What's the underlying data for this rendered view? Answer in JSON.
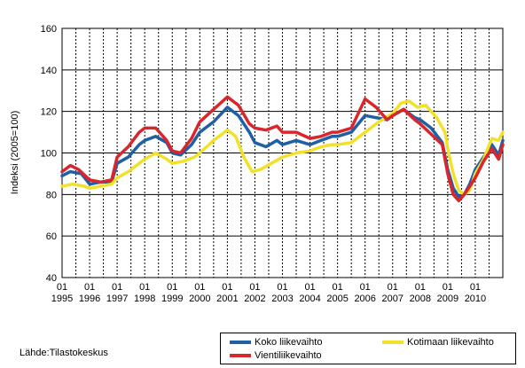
{
  "chart_data": {
    "type": "line",
    "title": "",
    "xlabel": "",
    "ylabel": "Indeksi (2005=100)",
    "ylim": [
      40,
      160
    ],
    "yticks": [
      40,
      60,
      80,
      100,
      120,
      140,
      160
    ],
    "x_tick_month": "01",
    "x_years": [
      "1995",
      "1996",
      "1997",
      "1998",
      "1999",
      "2000",
      "2001",
      "2002",
      "2003",
      "2004",
      "2005",
      "2006",
      "2007",
      "2008",
      "2009",
      "2010"
    ],
    "grid": true,
    "legend_position": "bottom-right",
    "source": "Lähde:Tilastokeskus",
    "series": [
      {
        "name": "Koko liikevaihto",
        "color": "#1f5fa6",
        "points": [
          [
            1995.0,
            89
          ],
          [
            1995.3,
            91
          ],
          [
            1995.7,
            90
          ],
          [
            1996.0,
            85
          ],
          [
            1996.4,
            86
          ],
          [
            1996.8,
            86
          ],
          [
            1997.0,
            95
          ],
          [
            1997.4,
            98
          ],
          [
            1997.8,
            104
          ],
          [
            1998.0,
            106
          ],
          [
            1998.4,
            108
          ],
          [
            1998.8,
            105
          ],
          [
            1999.0,
            100
          ],
          [
            1999.3,
            99
          ],
          [
            1999.7,
            104
          ],
          [
            2000.0,
            110
          ],
          [
            2000.5,
            115
          ],
          [
            2001.0,
            122
          ],
          [
            2001.4,
            118
          ],
          [
            2001.8,
            110
          ],
          [
            2002.0,
            105
          ],
          [
            2002.4,
            103
          ],
          [
            2002.8,
            106
          ],
          [
            2003.0,
            104
          ],
          [
            2003.5,
            106
          ],
          [
            2004.0,
            104
          ],
          [
            2004.4,
            106
          ],
          [
            2004.8,
            108
          ],
          [
            2005.0,
            108
          ],
          [
            2005.5,
            110
          ],
          [
            2006.0,
            118
          ],
          [
            2006.4,
            117
          ],
          [
            2006.8,
            116
          ],
          [
            2007.0,
            118
          ],
          [
            2007.4,
            121
          ],
          [
            2007.8,
            117
          ],
          [
            2008.0,
            116
          ],
          [
            2008.4,
            112
          ],
          [
            2008.8,
            105
          ],
          [
            2009.0,
            92
          ],
          [
            2009.2,
            83
          ],
          [
            2009.4,
            79
          ],
          [
            2009.6,
            80
          ],
          [
            2009.8,
            85
          ],
          [
            2010.0,
            92
          ],
          [
            2010.3,
            98
          ],
          [
            2010.6,
            104
          ],
          [
            2010.85,
            99
          ],
          [
            2011.0,
            106
          ]
        ]
      },
      {
        "name": "Kotimaan liikevaihto",
        "color": "#f2e12a",
        "points": [
          [
            1995.0,
            84
          ],
          [
            1995.4,
            85
          ],
          [
            1995.8,
            84
          ],
          [
            1996.0,
            83
          ],
          [
            1996.4,
            84
          ],
          [
            1996.8,
            85
          ],
          [
            1997.0,
            88
          ],
          [
            1997.4,
            91
          ],
          [
            1997.8,
            95
          ],
          [
            1998.0,
            97
          ],
          [
            1998.4,
            100
          ],
          [
            1998.8,
            97
          ],
          [
            1999.0,
            95
          ],
          [
            1999.4,
            96
          ],
          [
            1999.8,
            98
          ],
          [
            2000.0,
            100
          ],
          [
            2000.5,
            106
          ],
          [
            2001.0,
            111
          ],
          [
            2001.3,
            108
          ],
          [
            2001.6,
            98
          ],
          [
            2001.9,
            91
          ],
          [
            2002.2,
            92
          ],
          [
            2002.6,
            95
          ],
          [
            2003.0,
            98
          ],
          [
            2003.5,
            100
          ],
          [
            2004.0,
            101
          ],
          [
            2004.4,
            103
          ],
          [
            2004.8,
            104
          ],
          [
            2005.0,
            104
          ],
          [
            2005.5,
            105
          ],
          [
            2006.0,
            110
          ],
          [
            2006.5,
            115
          ],
          [
            2007.0,
            119
          ],
          [
            2007.3,
            124
          ],
          [
            2007.6,
            125
          ],
          [
            2007.9,
            122
          ],
          [
            2008.2,
            123
          ],
          [
            2008.6,
            117
          ],
          [
            2008.9,
            110
          ],
          [
            2009.0,
            102
          ],
          [
            2009.2,
            90
          ],
          [
            2009.4,
            82
          ],
          [
            2009.6,
            80
          ],
          [
            2009.8,
            82
          ],
          [
            2010.0,
            90
          ],
          [
            2010.3,
            97
          ],
          [
            2010.6,
            107
          ],
          [
            2010.85,
            106
          ],
          [
            2011.0,
            110
          ]
        ]
      },
      {
        "name": "Vientiliikevaihto",
        "color": "#d9262c",
        "points": [
          [
            1995.0,
            91
          ],
          [
            1995.3,
            94
          ],
          [
            1995.6,
            92
          ],
          [
            1996.0,
            87
          ],
          [
            1996.4,
            86
          ],
          [
            1996.8,
            87
          ],
          [
            1997.0,
            98
          ],
          [
            1997.4,
            103
          ],
          [
            1997.8,
            110
          ],
          [
            1998.0,
            112
          ],
          [
            1998.4,
            112
          ],
          [
            1998.8,
            106
          ],
          [
            1999.0,
            101
          ],
          [
            1999.3,
            100
          ],
          [
            1999.7,
            107
          ],
          [
            2000.0,
            115
          ],
          [
            2000.5,
            121
          ],
          [
            2001.0,
            127
          ],
          [
            2001.4,
            123
          ],
          [
            2001.8,
            114
          ],
          [
            2002.0,
            112
          ],
          [
            2002.4,
            111
          ],
          [
            2002.8,
            113
          ],
          [
            2003.0,
            110
          ],
          [
            2003.5,
            110
          ],
          [
            2004.0,
            107
          ],
          [
            2004.4,
            108
          ],
          [
            2004.8,
            110
          ],
          [
            2005.0,
            110
          ],
          [
            2005.5,
            112
          ],
          [
            2006.0,
            126
          ],
          [
            2006.4,
            122
          ],
          [
            2006.8,
            116
          ],
          [
            2007.0,
            118
          ],
          [
            2007.4,
            121
          ],
          [
            2007.8,
            116
          ],
          [
            2008.0,
            114
          ],
          [
            2008.4,
            109
          ],
          [
            2008.8,
            104
          ],
          [
            2009.0,
            90
          ],
          [
            2009.2,
            80
          ],
          [
            2009.4,
            77
          ],
          [
            2009.6,
            80
          ],
          [
            2009.8,
            84
          ],
          [
            2010.0,
            88
          ],
          [
            2010.3,
            96
          ],
          [
            2010.6,
            102
          ],
          [
            2010.85,
            97
          ],
          [
            2011.0,
            104
          ]
        ]
      }
    ]
  },
  "legend": {
    "koko": "Koko liikevaihto",
    "kotimaan": "Kotimaan liikevaihto",
    "vienti": "Vientiliikevaihto"
  }
}
